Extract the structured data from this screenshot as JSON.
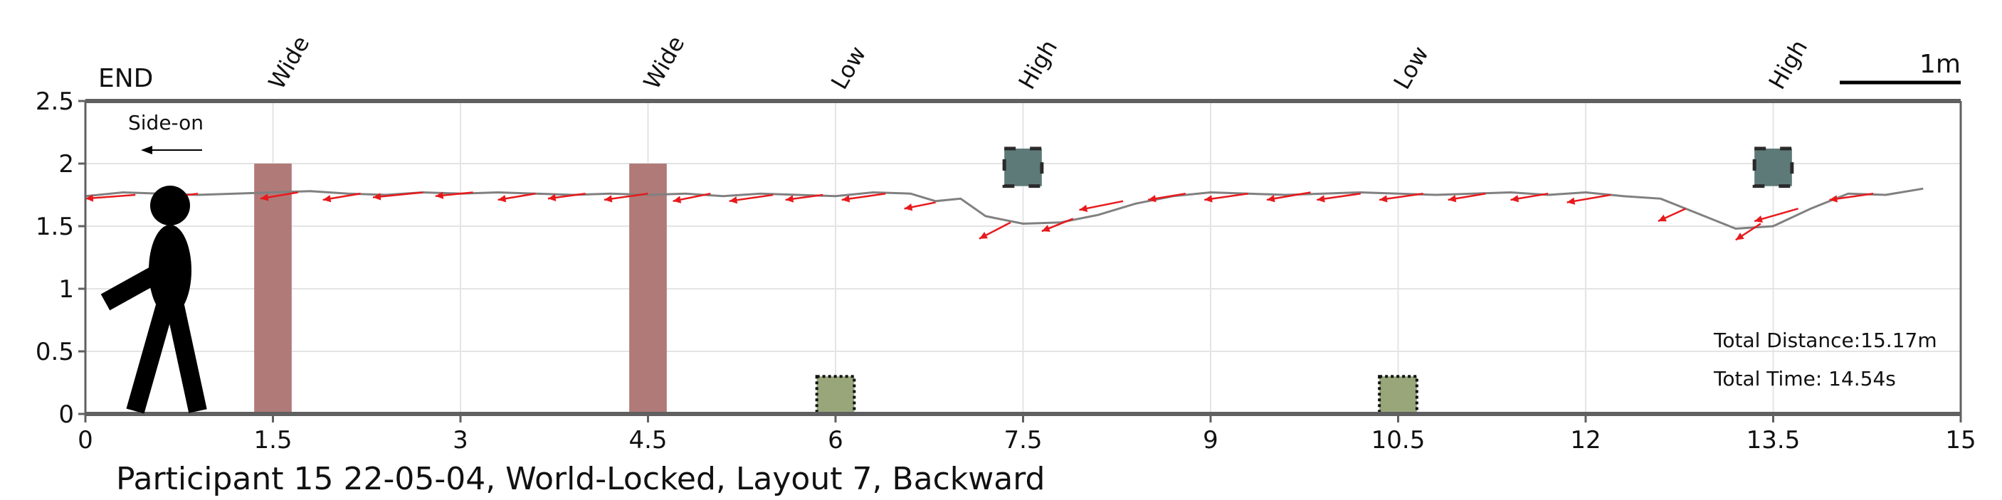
{
  "chart_data": {
    "type": "line",
    "caption": "Participant 15 22-05-04, World-Locked, Layout 7, Backward",
    "end_label": "END",
    "direction_label": "Side-on",
    "scale_label": "1m",
    "xlim": [
      0,
      15
    ],
    "ylim": [
      0,
      2.5
    ],
    "x_ticks": [
      0,
      1.5,
      3,
      4.5,
      6,
      7.5,
      9,
      10.5,
      12,
      13.5,
      15
    ],
    "x_tick_labels": [
      "0",
      "1.5",
      "3",
      "4.5",
      "6",
      "7.5",
      "9",
      "10.5",
      "12",
      "13.5",
      "15"
    ],
    "y_ticks": [
      0,
      0.5,
      1,
      1.5,
      2,
      2.5
    ],
    "y_tick_labels": [
      "0",
      "0.5",
      "1",
      "1.5",
      "2",
      "2.5"
    ],
    "grid": true,
    "top_annotations": [
      {
        "label": "Wide",
        "x": 1.5
      },
      {
        "label": "Wide",
        "x": 4.5
      },
      {
        "label": "Low",
        "x": 6
      },
      {
        "label": "High",
        "x": 7.5
      },
      {
        "label": "Low",
        "x": 10.5
      },
      {
        "label": "High",
        "x": 13.5
      }
    ],
    "obstacles": [
      {
        "kind": "wide",
        "x_center": 1.5,
        "width": 0.3,
        "y_bottom": 0,
        "y_top": 2.0,
        "color": "#b07a78"
      },
      {
        "kind": "wide",
        "x_center": 4.5,
        "width": 0.3,
        "y_bottom": 0,
        "y_top": 2.0,
        "color": "#b07a78"
      },
      {
        "kind": "low",
        "x_center": 6,
        "width": 0.3,
        "y_bottom": 0,
        "y_top": 0.3,
        "color": "#98a67a"
      },
      {
        "kind": "high",
        "x_center": 7.5,
        "width": 0.3,
        "y_bottom": 1.82,
        "y_top": 2.12,
        "color": "#5e7a78"
      },
      {
        "kind": "low",
        "x_center": 10.5,
        "width": 0.3,
        "y_bottom": 0,
        "y_top": 0.3,
        "color": "#98a67a"
      },
      {
        "kind": "high",
        "x_center": 13.5,
        "width": 0.3,
        "y_bottom": 1.82,
        "y_top": 2.12,
        "color": "#5e7a78"
      }
    ],
    "trajectory": {
      "color": "#808080",
      "x": [
        0.0,
        0.3,
        0.6,
        0.9,
        1.2,
        1.5,
        1.8,
        2.1,
        2.4,
        2.7,
        3.0,
        3.3,
        3.6,
        3.9,
        4.2,
        4.5,
        4.8,
        5.1,
        5.4,
        5.7,
        6.0,
        6.3,
        6.6,
        6.8,
        7.0,
        7.2,
        7.5,
        7.8,
        8.1,
        8.4,
        8.7,
        9.0,
        9.3,
        9.6,
        9.9,
        10.2,
        10.5,
        10.8,
        11.1,
        11.4,
        11.7,
        12.0,
        12.3,
        12.6,
        12.9,
        13.2,
        13.5,
        13.8,
        14.1,
        14.4,
        14.7
      ],
      "y": [
        1.74,
        1.77,
        1.76,
        1.75,
        1.76,
        1.77,
        1.78,
        1.76,
        1.75,
        1.77,
        1.76,
        1.77,
        1.76,
        1.75,
        1.76,
        1.75,
        1.76,
        1.74,
        1.76,
        1.75,
        1.74,
        1.77,
        1.76,
        1.7,
        1.72,
        1.58,
        1.52,
        1.53,
        1.59,
        1.68,
        1.74,
        1.77,
        1.76,
        1.75,
        1.76,
        1.77,
        1.76,
        1.75,
        1.76,
        1.77,
        1.75,
        1.77,
        1.74,
        1.72,
        1.6,
        1.48,
        1.5,
        1.64,
        1.76,
        1.75,
        1.8
      ]
    },
    "heading_arrows": {
      "color": "#e8191c",
      "points": [
        {
          "x": 0.4,
          "y": 1.75,
          "dx": -0.4,
          "dy": -0.03
        },
        {
          "x": 0.9,
          "y": 1.76,
          "dx": -0.3,
          "dy": -0.04
        },
        {
          "x": 1.7,
          "y": 1.77,
          "dx": -0.3,
          "dy": -0.05
        },
        {
          "x": 2.2,
          "y": 1.76,
          "dx": -0.3,
          "dy": -0.05
        },
        {
          "x": 2.7,
          "y": 1.77,
          "dx": -0.4,
          "dy": -0.04
        },
        {
          "x": 3.1,
          "y": 1.77,
          "dx": -0.3,
          "dy": -0.03
        },
        {
          "x": 3.6,
          "y": 1.76,
          "dx": -0.3,
          "dy": -0.05
        },
        {
          "x": 4.0,
          "y": 1.76,
          "dx": -0.3,
          "dy": -0.04
        },
        {
          "x": 4.5,
          "y": 1.76,
          "dx": -0.35,
          "dy": -0.05
        },
        {
          "x": 5.0,
          "y": 1.76,
          "dx": -0.3,
          "dy": -0.06
        },
        {
          "x": 5.5,
          "y": 1.75,
          "dx": -0.35,
          "dy": -0.05
        },
        {
          "x": 5.9,
          "y": 1.75,
          "dx": -0.3,
          "dy": -0.04
        },
        {
          "x": 6.4,
          "y": 1.76,
          "dx": -0.35,
          "dy": -0.05
        },
        {
          "x": 6.8,
          "y": 1.69,
          "dx": -0.25,
          "dy": -0.05
        },
        {
          "x": 7.4,
          "y": 1.53,
          "dx": -0.25,
          "dy": -0.13
        },
        {
          "x": 7.9,
          "y": 1.56,
          "dx": -0.25,
          "dy": -0.1
        },
        {
          "x": 8.3,
          "y": 1.7,
          "dx": -0.35,
          "dy": -0.07
        },
        {
          "x": 8.8,
          "y": 1.76,
          "dx": -0.3,
          "dy": -0.05
        },
        {
          "x": 9.3,
          "y": 1.76,
          "dx": -0.35,
          "dy": -0.05
        },
        {
          "x": 9.8,
          "y": 1.77,
          "dx": -0.35,
          "dy": -0.06
        },
        {
          "x": 10.2,
          "y": 1.76,
          "dx": -0.35,
          "dy": -0.05
        },
        {
          "x": 10.7,
          "y": 1.76,
          "dx": -0.35,
          "dy": -0.05
        },
        {
          "x": 11.2,
          "y": 1.76,
          "dx": -0.3,
          "dy": -0.05
        },
        {
          "x": 11.7,
          "y": 1.76,
          "dx": -0.3,
          "dy": -0.05
        },
        {
          "x": 12.2,
          "y": 1.75,
          "dx": -0.35,
          "dy": -0.06
        },
        {
          "x": 12.8,
          "y": 1.64,
          "dx": -0.22,
          "dy": -0.1
        },
        {
          "x": 13.4,
          "y": 1.52,
          "dx": -0.2,
          "dy": -0.13
        },
        {
          "x": 13.7,
          "y": 1.64,
          "dx": -0.35,
          "dy": -0.1
        },
        {
          "x": 14.3,
          "y": 1.76,
          "dx": -0.35,
          "dy": -0.05
        }
      ]
    },
    "stats": {
      "total_distance": "Total Distance:15.17m",
      "total_time": "Total Time: 14.54s"
    }
  }
}
